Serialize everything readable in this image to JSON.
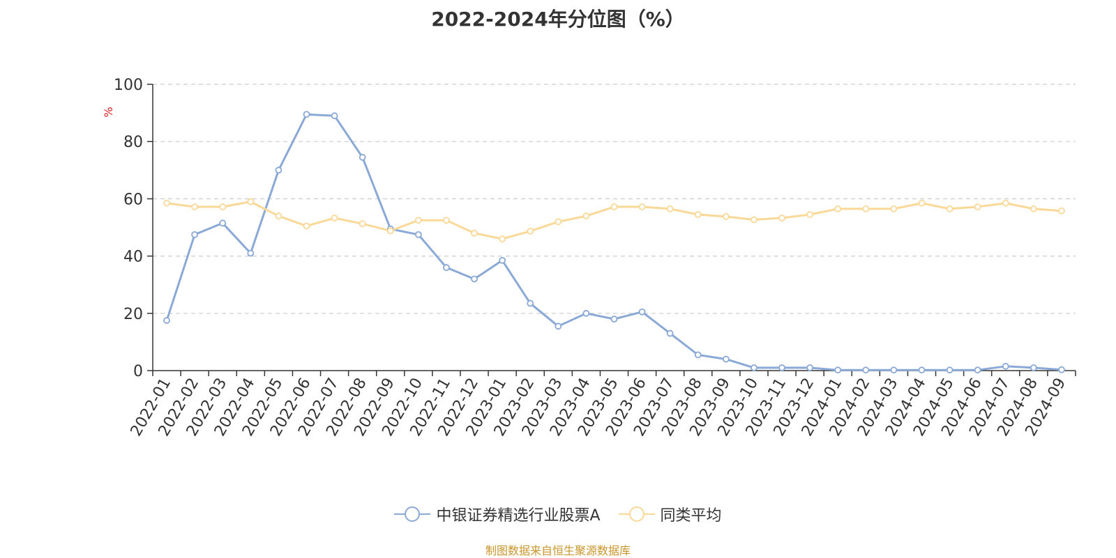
{
  "colors": {
    "series_a": "#8aa9d6",
    "series_b": "#f9d898",
    "axis": "#333333",
    "grid": "#cccccc",
    "unit_label": "#e02020",
    "source": "#c8962a"
  },
  "chart_data": {
    "type": "line",
    "title": "2022-2024年分位图（%）",
    "ylabel": "%",
    "ylim": [
      0,
      100
    ],
    "yticks": [
      0,
      20,
      40,
      60,
      80,
      100
    ],
    "grid": true,
    "legend_position": "bottom",
    "categories": [
      "2022-01",
      "2022-02",
      "2022-03",
      "2022-04",
      "2022-05",
      "2022-06",
      "2022-07",
      "2022-08",
      "2022-09",
      "2022-10",
      "2022-11",
      "2022-12",
      "2023-01",
      "2023-02",
      "2023-03",
      "2023-04",
      "2023-05",
      "2023-06",
      "2023-07",
      "2023-08",
      "2023-09",
      "2023-10",
      "2023-11",
      "2023-12",
      "2024-01",
      "2024-02",
      "2024-03",
      "2024-04",
      "2024-05",
      "2024-06",
      "2024-07",
      "2024-08",
      "2024-09"
    ],
    "series": [
      {
        "name": "中银证券精选行业股票A",
        "color": "#8aa9d6",
        "values": [
          17.5,
          47.5,
          51.5,
          41,
          70,
          89.5,
          89,
          74.5,
          49.5,
          47.5,
          36,
          32,
          38.5,
          23.5,
          15.5,
          20,
          18,
          20.5,
          13,
          5.5,
          4,
          1,
          1,
          1,
          0.2,
          0.2,
          0.2,
          0.2,
          0.2,
          0.2,
          1.5,
          1,
          0.3
        ]
      },
      {
        "name": "同类平均",
        "color": "#f9d898",
        "values": [
          58.5,
          57.2,
          57.2,
          59,
          54,
          50.5,
          53.3,
          51.3,
          48.8,
          52.5,
          52.5,
          48,
          46,
          48.7,
          52,
          54,
          57.2,
          57.2,
          56.5,
          54.5,
          53.8,
          52.7,
          53.3,
          54.5,
          56.5,
          56.5,
          56.5,
          58.5,
          56.5,
          57.2,
          58.5,
          56.5,
          55.8
        ]
      }
    ]
  },
  "source_note": "制图数据来自恒生聚源数据库"
}
